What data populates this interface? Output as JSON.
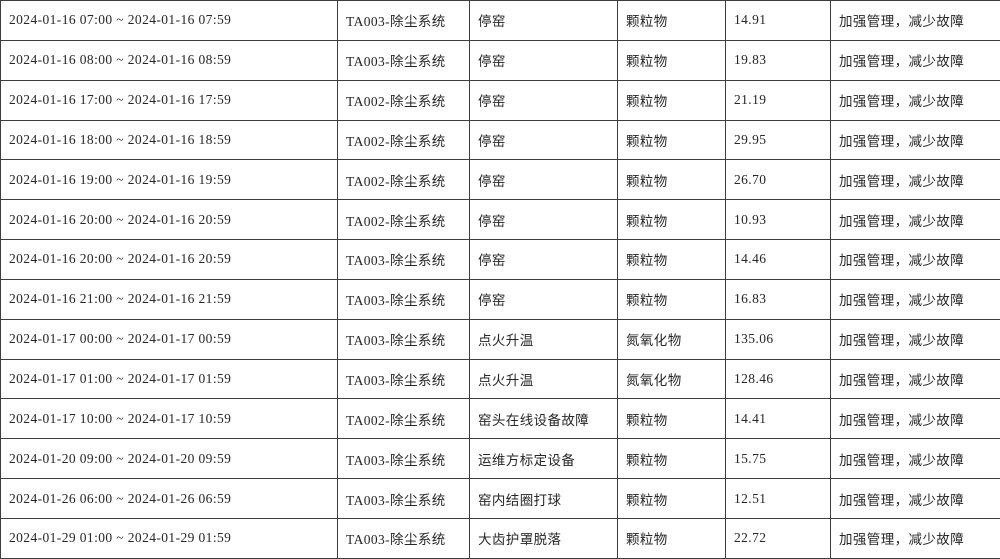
{
  "colors": {
    "background": "#ffffff",
    "border": "#3d3d3d",
    "text": "#262626"
  },
  "table": {
    "column_keys": [
      "time_range",
      "system",
      "status",
      "pollutant",
      "value",
      "measure"
    ],
    "rows": [
      {
        "time_range": "2024-01-16 07:00 ~ 2024-01-16 07:59",
        "system": "TA003-除尘系统",
        "status": "停窑",
        "pollutant": "颗粒物",
        "value": "14.91",
        "measure": "加强管理，减少故障"
      },
      {
        "time_range": "2024-01-16 08:00 ~ 2024-01-16 08:59",
        "system": "TA003-除尘系统",
        "status": "停窑",
        "pollutant": "颗粒物",
        "value": "19.83",
        "measure": "加强管理，减少故障"
      },
      {
        "time_range": "2024-01-16 17:00 ~ 2024-01-16 17:59",
        "system": "TA002-除尘系统",
        "status": "停窑",
        "pollutant": "颗粒物",
        "value": "21.19",
        "measure": "加强管理，减少故障"
      },
      {
        "time_range": "2024-01-16 18:00 ~ 2024-01-16 18:59",
        "system": "TA002-除尘系统",
        "status": "停窑",
        "pollutant": "颗粒物",
        "value": "29.95",
        "measure": "加强管理，减少故障"
      },
      {
        "time_range": "2024-01-16 19:00 ~ 2024-01-16 19:59",
        "system": "TA002-除尘系统",
        "status": "停窑",
        "pollutant": "颗粒物",
        "value": "26.70",
        "measure": "加强管理，减少故障"
      },
      {
        "time_range": "2024-01-16 20:00 ~ 2024-01-16 20:59",
        "system": "TA002-除尘系统",
        "status": "停窑",
        "pollutant": "颗粒物",
        "value": "10.93",
        "measure": "加强管理，减少故障"
      },
      {
        "time_range": "2024-01-16 20:00 ~ 2024-01-16 20:59",
        "system": "TA003-除尘系统",
        "status": "停窑",
        "pollutant": "颗粒物",
        "value": "14.46",
        "measure": "加强管理，减少故障"
      },
      {
        "time_range": "2024-01-16 21:00 ~ 2024-01-16 21:59",
        "system": "TA003-除尘系统",
        "status": "停窑",
        "pollutant": "颗粒物",
        "value": "16.83",
        "measure": "加强管理，减少故障"
      },
      {
        "time_range": "2024-01-17 00:00 ~ 2024-01-17 00:59",
        "system": "TA003-除尘系统",
        "status": "点火升温",
        "pollutant": "氮氧化物",
        "value": "135.06",
        "measure": "加强管理，减少故障"
      },
      {
        "time_range": "2024-01-17 01:00 ~ 2024-01-17 01:59",
        "system": "TA003-除尘系统",
        "status": "点火升温",
        "pollutant": "氮氧化物",
        "value": "128.46",
        "measure": "加强管理，减少故障"
      },
      {
        "time_range": "2024-01-17 10:00 ~ 2024-01-17 10:59",
        "system": "TA002-除尘系统",
        "status": "窑头在线设备故障",
        "pollutant": "颗粒物",
        "value": "14.41",
        "measure": "加强管理，减少故障"
      },
      {
        "time_range": "2024-01-20 09:00 ~ 2024-01-20 09:59",
        "system": "TA003-除尘系统",
        "status": "运维方标定设备",
        "pollutant": "颗粒物",
        "value": "15.75",
        "measure": "加强管理，减少故障"
      },
      {
        "time_range": "2024-01-26 06:00 ~ 2024-01-26 06:59",
        "system": "TA003-除尘系统",
        "status": "窑内结圈打球",
        "pollutant": "颗粒物",
        "value": "12.51",
        "measure": "加强管理，减少故障"
      },
      {
        "time_range": "2024-01-29 01:00 ~ 2024-01-29 01:59",
        "system": "TA003-除尘系统",
        "status": "大齿护罩脱落",
        "pollutant": "颗粒物",
        "value": "22.72",
        "measure": "加强管理，减少故障"
      }
    ]
  }
}
